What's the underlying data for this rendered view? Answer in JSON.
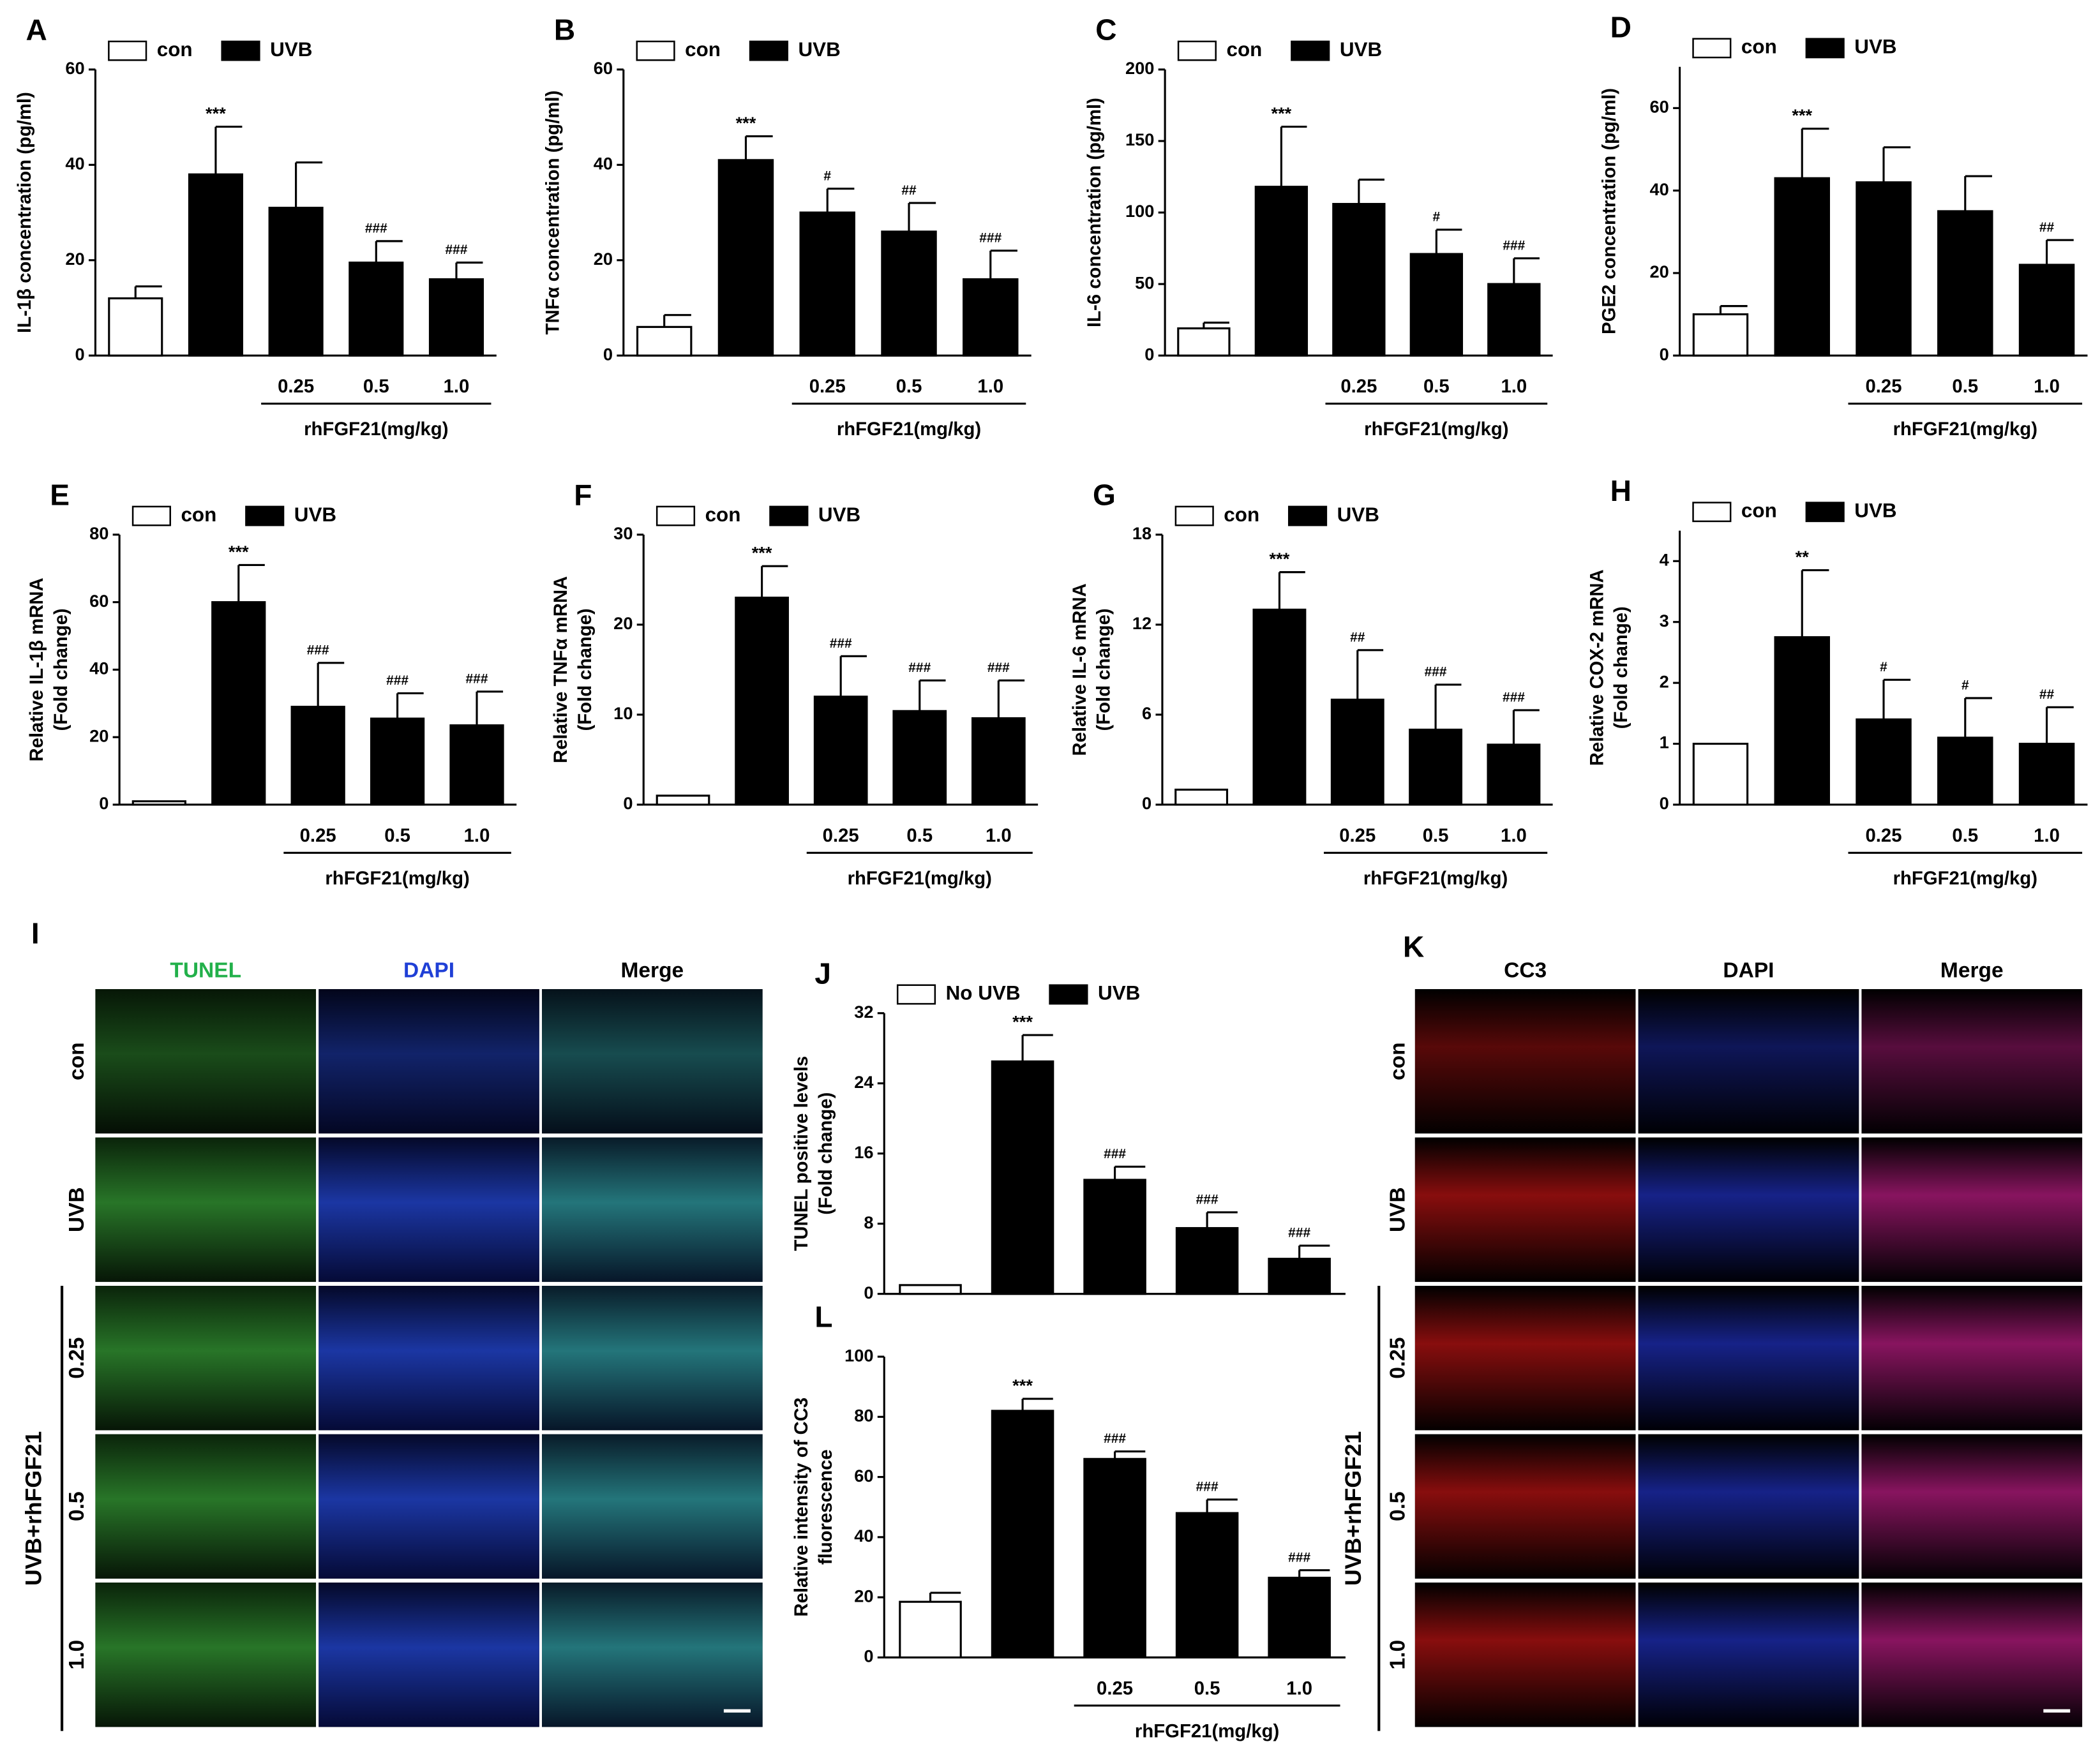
{
  "chart_data": [
    {
      "type": "bar",
      "label": "A",
      "ylabel": "IL-1β concentration (pg/ml)",
      "categories": [
        null,
        null,
        "0.25",
        "0.5",
        "1.0"
      ],
      "xlabel": "rhFGF21(mg/kg)",
      "series": [
        {
          "name": "con",
          "color": "#ffffff",
          "values": [
            12,
            null,
            null,
            null,
            null
          ],
          "errors": [
            2.5,
            null,
            null,
            null,
            null
          ]
        },
        {
          "name": "UVB",
          "color": "#000000",
          "values": [
            null,
            38,
            31,
            19.5,
            16
          ],
          "errors": [
            null,
            10,
            9.5,
            4.5,
            3.5
          ]
        }
      ],
      "annotations": [
        null,
        "***",
        null,
        "###",
        "###"
      ],
      "ylim": [
        0,
        60
      ],
      "yticks": [
        0,
        20,
        40,
        60
      ]
    },
    {
      "type": "bar",
      "label": "B",
      "ylabel": "TNFα concentration (pg/ml)",
      "categories": [
        null,
        null,
        "0.25",
        "0.5",
        "1.0"
      ],
      "xlabel": "rhFGF21(mg/kg)",
      "series": [
        {
          "name": "con",
          "color": "#ffffff",
          "values": [
            6,
            null,
            null,
            null,
            null
          ],
          "errors": [
            2.5,
            null,
            null,
            null,
            null
          ]
        },
        {
          "name": "UVB",
          "color": "#000000",
          "values": [
            null,
            41,
            30,
            26,
            16
          ],
          "errors": [
            null,
            5,
            5,
            6,
            6
          ]
        }
      ],
      "annotations": [
        null,
        "***",
        "#",
        "##",
        "###"
      ],
      "ylim": [
        0,
        60
      ],
      "yticks": [
        0,
        20,
        40,
        60
      ]
    },
    {
      "type": "bar",
      "label": "C",
      "ylabel": "IL-6 concentration (pg/ml)",
      "categories": [
        null,
        null,
        "0.25",
        "0.5",
        "1.0"
      ],
      "xlabel": "rhFGF21(mg/kg)",
      "series": [
        {
          "name": "con",
          "color": "#ffffff",
          "values": [
            19,
            null,
            null,
            null,
            null
          ],
          "errors": [
            4,
            null,
            null,
            null,
            null
          ]
        },
        {
          "name": "UVB",
          "color": "#000000",
          "values": [
            null,
            118,
            106,
            71,
            50
          ],
          "errors": [
            null,
            42,
            17,
            17,
            18
          ]
        }
      ],
      "annotations": [
        null,
        "***",
        null,
        "#",
        "###"
      ],
      "ylim": [
        0,
        200
      ],
      "yticks": [
        0,
        50,
        100,
        150,
        200
      ]
    },
    {
      "type": "bar",
      "label": "D",
      "ylabel": "PGE2 concentration (pg/ml)",
      "categories": [
        null,
        null,
        "0.25",
        "0.5",
        "1.0"
      ],
      "xlabel": "rhFGF21(mg/kg)",
      "series": [
        {
          "name": "con",
          "color": "#ffffff",
          "values": [
            10,
            null,
            null,
            null,
            null
          ],
          "errors": [
            2,
            null,
            null,
            null,
            null
          ]
        },
        {
          "name": "UVB",
          "color": "#000000",
          "values": [
            null,
            43,
            42,
            35,
            22
          ],
          "errors": [
            null,
            12,
            8.5,
            8.5,
            6
          ]
        }
      ],
      "annotations": [
        null,
        "***",
        null,
        null,
        "##"
      ],
      "ylim": [
        0,
        70
      ],
      "yticks": [
        0,
        20,
        40,
        60
      ]
    },
    {
      "type": "bar",
      "label": "E",
      "ylabel": [
        "Relative IL-1β mRNA",
        "(Fold change)"
      ],
      "categories": [
        null,
        null,
        "0.25",
        "0.5",
        "1.0"
      ],
      "xlabel": "rhFGF21(mg/kg)",
      "series": [
        {
          "name": "con",
          "color": "#ffffff",
          "values": [
            1,
            null,
            null,
            null,
            null
          ],
          "errors": [
            null,
            null,
            null,
            null,
            null
          ]
        },
        {
          "name": "UVB",
          "color": "#000000",
          "values": [
            null,
            60,
            29,
            25.5,
            23.5
          ],
          "errors": [
            null,
            11,
            13,
            7.5,
            10
          ]
        }
      ],
      "annotations": [
        null,
        "***",
        "###",
        "###",
        "###"
      ],
      "ylim": [
        0,
        80
      ],
      "yticks": [
        0,
        20,
        40,
        60,
        80
      ]
    },
    {
      "type": "bar",
      "label": "F",
      "ylabel": [
        "Relative TNFα mRNA",
        "(Fold change)"
      ],
      "categories": [
        null,
        null,
        "0.25",
        "0.5",
        "1.0"
      ],
      "xlabel": "rhFGF21(mg/kg)",
      "series": [
        {
          "name": "con",
          "color": "#ffffff",
          "values": [
            1,
            null,
            null,
            null,
            null
          ],
          "errors": [
            null,
            null,
            null,
            null,
            null
          ]
        },
        {
          "name": "UVB",
          "color": "#000000",
          "values": [
            null,
            23,
            12,
            10.4,
            9.6
          ],
          "errors": [
            null,
            3.5,
            4.5,
            3.4,
            4.2
          ]
        }
      ],
      "annotations": [
        null,
        "***",
        "###",
        "###",
        "###"
      ],
      "ylim": [
        0,
        30
      ],
      "yticks": [
        0,
        10,
        20,
        30
      ]
    },
    {
      "type": "bar",
      "label": "G",
      "ylabel": [
        "Relative IL-6 mRNA",
        "(Fold change)"
      ],
      "categories": [
        null,
        null,
        "0.25",
        "0.5",
        "1.0"
      ],
      "xlabel": "rhFGF21(mg/kg)",
      "series": [
        {
          "name": "con",
          "color": "#ffffff",
          "values": [
            1,
            null,
            null,
            null,
            null
          ],
          "errors": [
            null,
            null,
            null,
            null,
            null
          ]
        },
        {
          "name": "UVB",
          "color": "#000000",
          "values": [
            null,
            13,
            7,
            5,
            4
          ],
          "errors": [
            null,
            2.5,
            3.3,
            3,
            2.3
          ]
        }
      ],
      "annotations": [
        null,
        "***",
        "##",
        "###",
        "###"
      ],
      "ylim": [
        0,
        18
      ],
      "yticks": [
        0,
        6,
        12,
        18
      ]
    },
    {
      "type": "bar",
      "label": "H",
      "ylabel": [
        "Relative COX-2 mRNA",
        "(Fold change)"
      ],
      "categories": [
        null,
        null,
        "0.25",
        "0.5",
        "1.0"
      ],
      "xlabel": "rhFGF21(mg/kg)",
      "series": [
        {
          "name": "con",
          "color": "#ffffff",
          "values": [
            1,
            null,
            null,
            null,
            null
          ],
          "errors": [
            null,
            null,
            null,
            null,
            null
          ]
        },
        {
          "name": "UVB",
          "color": "#000000",
          "values": [
            null,
            2.75,
            1.4,
            1.1,
            1
          ],
          "errors": [
            null,
            1.1,
            0.65,
            0.65,
            0.6
          ]
        }
      ],
      "annotations": [
        null,
        "**",
        "#",
        "#",
        "##"
      ],
      "ylim": [
        0,
        4.5
      ],
      "yticks": [
        0,
        1,
        2,
        3,
        4
      ]
    },
    {
      "type": "bar",
      "label": "J",
      "ylabel": [
        "TUNEL positive levels",
        "(Fold change)"
      ],
      "categories": [
        null,
        null,
        null,
        null,
        null
      ],
      "series": [
        {
          "name": "No UVB",
          "color": "#ffffff",
          "values": [
            1,
            null,
            null,
            null,
            null
          ],
          "errors": [
            null,
            null,
            null,
            null,
            null
          ]
        },
        {
          "name": "UVB",
          "color": "#000000",
          "values": [
            null,
            26.5,
            13,
            7.5,
            4
          ],
          "errors": [
            null,
            3,
            1.5,
            1.8,
            1.5
          ]
        }
      ],
      "annotations": [
        null,
        "***",
        "###",
        "###",
        "###"
      ],
      "ylim": [
        0,
        32
      ],
      "yticks": [
        0,
        8,
        16,
        24,
        32
      ]
    },
    {
      "type": "bar",
      "label": "L",
      "ylabel": [
        "Relative intensity of CC3",
        "fluorescence"
      ],
      "categories": [
        null,
        null,
        "0.25",
        "0.5",
        "1.0"
      ],
      "xlabel": "rhFGF21(mg/kg)",
      "series": [
        {
          "color": "#ffffff",
          "values": [
            18.5,
            null,
            null,
            null,
            null
          ],
          "errors": [
            3,
            null,
            null,
            null,
            null
          ]
        },
        {
          "color": "#000000",
          "values": [
            null,
            82,
            66,
            48,
            26.5
          ],
          "errors": [
            null,
            4,
            2.5,
            4.5,
            2.5
          ]
        }
      ],
      "annotations": [
        null,
        "***",
        "###",
        "###",
        "###"
      ],
      "ylim": [
        0,
        100
      ],
      "yticks": [
        0,
        20,
        40,
        60,
        80,
        100
      ]
    }
  ],
  "image_panels": [
    {
      "label": "I",
      "columns": [
        "TUNEL",
        "DAPI",
        "Merge"
      ],
      "column_colors": [
        "#22b04a",
        "#1f3fd6",
        "#000000"
      ],
      "rows": [
        "con",
        "UVB",
        "0.25",
        "0.5",
        "1.0"
      ],
      "group": "UVB+rhFGF21"
    },
    {
      "label": "K",
      "columns": [
        "CC3",
        "DAPI",
        "Merge"
      ],
      "column_colors": [
        "#000000",
        "#000000",
        "#000000"
      ],
      "rows": [
        "con",
        "UVB",
        "0.25",
        "0.5",
        "1.0"
      ],
      "group": "UVB+rhFGF21"
    }
  ]
}
